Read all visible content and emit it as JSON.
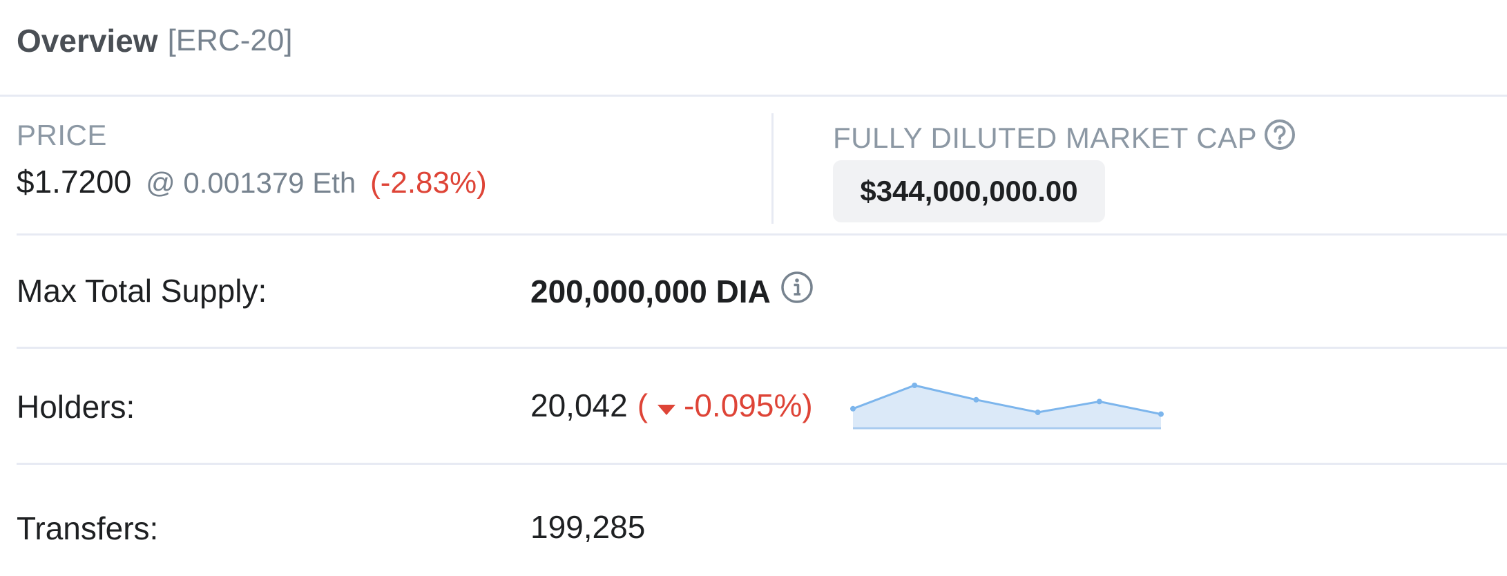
{
  "header": {
    "title": "Overview",
    "type_tag": "[ERC-20]"
  },
  "price": {
    "label": "PRICE",
    "value": "$1.7200",
    "eth": "@ 0.001379 Eth",
    "change": "(-2.83%)"
  },
  "market_cap": {
    "label": "FULLY DILUTED MARKET CAP",
    "value": "$344,000,000.00",
    "help_icon": "question-circle-icon"
  },
  "rows": {
    "supply": {
      "label": "Max Total Supply:",
      "value": "200,000,000 DIA",
      "icon": "info-circle-icon"
    },
    "holders": {
      "label": "Holders:",
      "value": "20,042",
      "change_open": "(",
      "change_value": "-0.095%)",
      "caret_icon": "caret-down-icon",
      "sparkline": [
        0.35,
        1.0,
        0.6,
        0.25,
        0.55,
        0.2
      ]
    },
    "transfers": {
      "label": "Transfers:",
      "value": "199,285"
    }
  },
  "colors": {
    "negative": "#de4437",
    "muted": "#77838f",
    "sparkline_line": "#7cb5ec",
    "sparkline_fill": "#dbe9f8"
  }
}
